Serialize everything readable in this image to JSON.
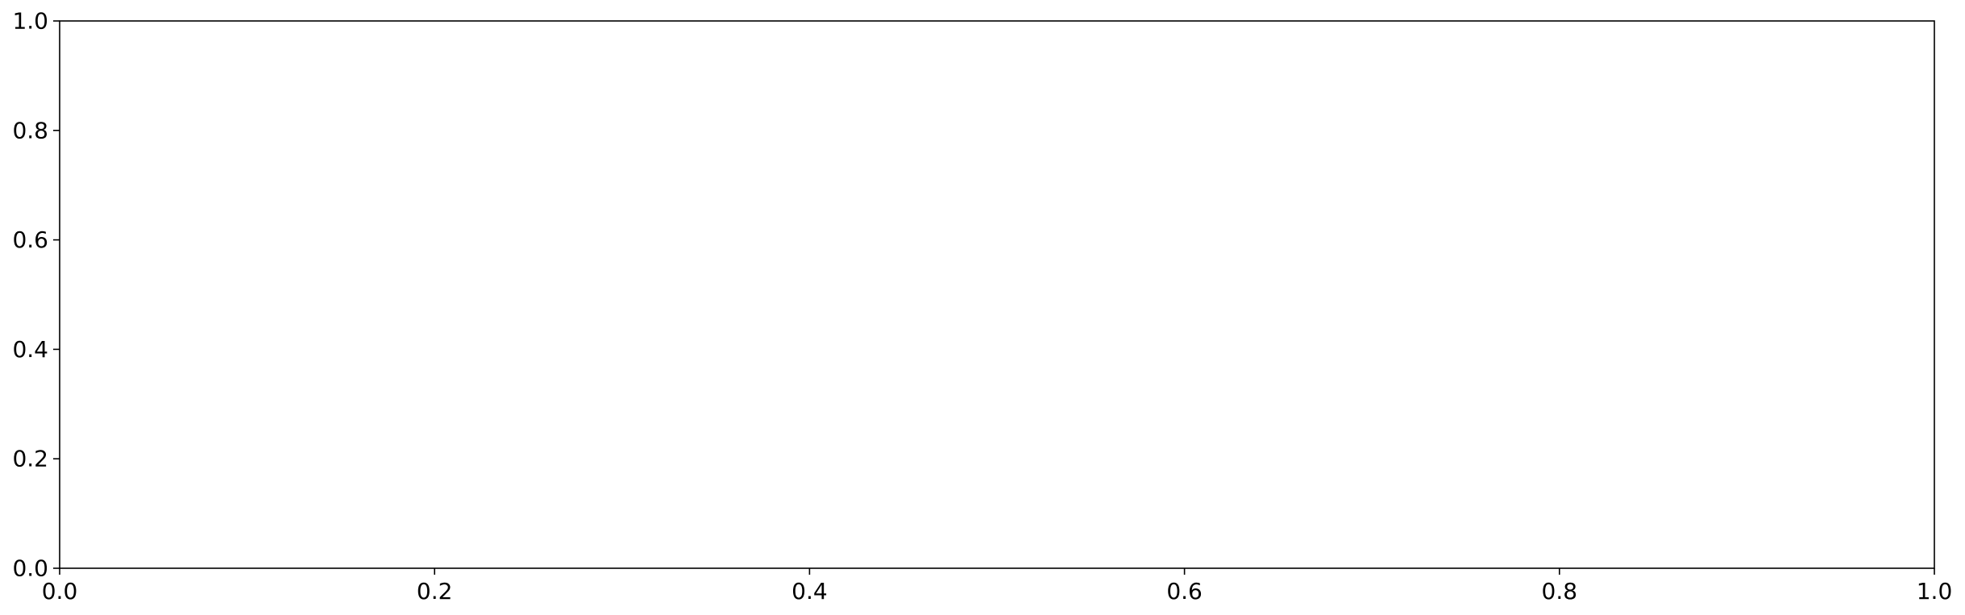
{
  "chart_data": {
    "type": "line",
    "title": "",
    "xlabel": "",
    "ylabel": "",
    "series": [],
    "xlim": [
      0.0,
      1.0
    ],
    "ylim": [
      0.0,
      1.0
    ],
    "xticks": [
      0.0,
      0.2,
      0.4,
      0.6,
      0.8,
      1.0
    ],
    "yticks": [
      0.0,
      0.2,
      0.4,
      0.6,
      0.8,
      1.0
    ],
    "xtick_labels": [
      "0.0",
      "0.2",
      "0.4",
      "0.6",
      "0.8",
      "1.0"
    ],
    "ytick_labels": [
      "0.0",
      "0.2",
      "0.4",
      "0.6",
      "0.8",
      "1.0"
    ],
    "grid": false,
    "legend": "none"
  },
  "colors": {
    "axes": "#000000",
    "background": "#ffffff"
  }
}
